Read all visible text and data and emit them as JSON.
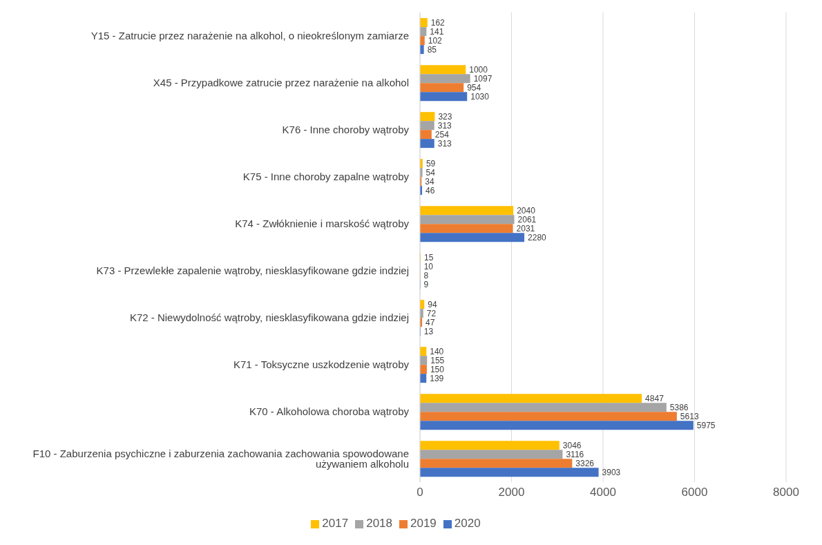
{
  "chart_data": {
    "type": "bar",
    "orientation": "horizontal",
    "categories": [
      "Y15 - Zatrucie przez narażenie na alkohol, o nieokreślonym zamiarze",
      "X45 - Przypadkowe zatrucie przez narażenie na alkohol",
      "K76 - Inne choroby wątroby",
      "K75 - Inne choroby zapalne wątroby",
      "K74 - Zwłóknienie i marskość wątroby",
      "K73 - Przewlekłe zapalenie wątroby, niesklasyfikowane gdzie indziej",
      "K72 - Niewydolność wątroby, niesklasyfikowana gdzie indziej",
      "K71 - Toksyczne uszkodzenie wątroby",
      "K70 - Alkoholowa choroba wątroby",
      "F10 - Zaburzenia psychiczne i zaburzenia zachowania zachowania spowodowane używaniem alkoholu"
    ],
    "series": [
      {
        "name": "2017",
        "color": "#ffc000",
        "values": [
          162,
          1000,
          323,
          59,
          2040,
          15,
          94,
          140,
          4847,
          3046
        ]
      },
      {
        "name": "2018",
        "color": "#a5a5a5",
        "values": [
          141,
          1097,
          313,
          54,
          2061,
          10,
          72,
          155,
          5386,
          3116
        ]
      },
      {
        "name": "2019",
        "color": "#ed7d31",
        "values": [
          102,
          954,
          254,
          34,
          2031,
          8,
          47,
          150,
          5613,
          3326
        ]
      },
      {
        "name": "2020",
        "color": "#4472c4",
        "values": [
          85,
          1030,
          313,
          46,
          2280,
          9,
          13,
          139,
          5975,
          3903
        ]
      }
    ],
    "xlim": [
      0,
      8000
    ],
    "xticks": [
      0,
      2000,
      4000,
      6000,
      8000
    ],
    "grid": "x",
    "legend": "bottom",
    "data_labels": true
  }
}
